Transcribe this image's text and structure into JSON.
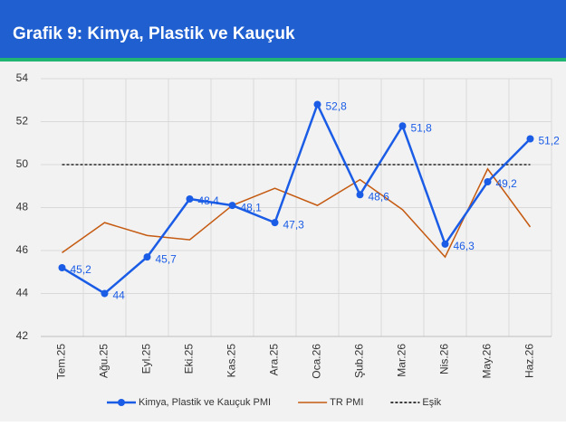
{
  "chart_data": {
    "type": "line",
    "title": "Grafik 9: Kimya, Plastik ve Kauçuk",
    "categories": [
      "Tem.25",
      "Ağu.25",
      "Eyl.25",
      "Eki.25",
      "Kas.25",
      "Ara.25",
      "Oca.26",
      "Şub.26",
      "Mar.26",
      "Nis.26",
      "May.26",
      "Haz.26"
    ],
    "series": [
      {
        "name": "Kimya, Plastik ve Kauçuk PMI",
        "color": "#1a5ce6",
        "markers": true,
        "values": [
          45.2,
          44,
          45.7,
          48.4,
          48.1,
          47.3,
          52.8,
          48.6,
          51.8,
          46.3,
          49.2,
          51.2
        ],
        "value_labels": [
          "45,2",
          "44",
          "45,7",
          "48,4",
          "48,1",
          "47,3",
          "52,8",
          "48,6",
          "51,8",
          "46,3",
          "49,2",
          "51,2"
        ]
      },
      {
        "name": "TR PMI",
        "color": "#c55a11",
        "markers": false,
        "values": [
          45.9,
          47.3,
          46.7,
          46.5,
          48.1,
          48.9,
          48.1,
          49.3,
          47.9,
          45.7,
          49.8,
          47.1
        ]
      },
      {
        "name": "Eşik",
        "color": "#000000",
        "dashed": true,
        "markers": false,
        "values": [
          50,
          50,
          50,
          50,
          50,
          50,
          50,
          50,
          50,
          50,
          50,
          50
        ]
      }
    ],
    "ylim": [
      42,
      54
    ],
    "yticks": [
      42,
      44,
      46,
      48,
      50,
      52,
      54
    ],
    "grid": true
  }
}
